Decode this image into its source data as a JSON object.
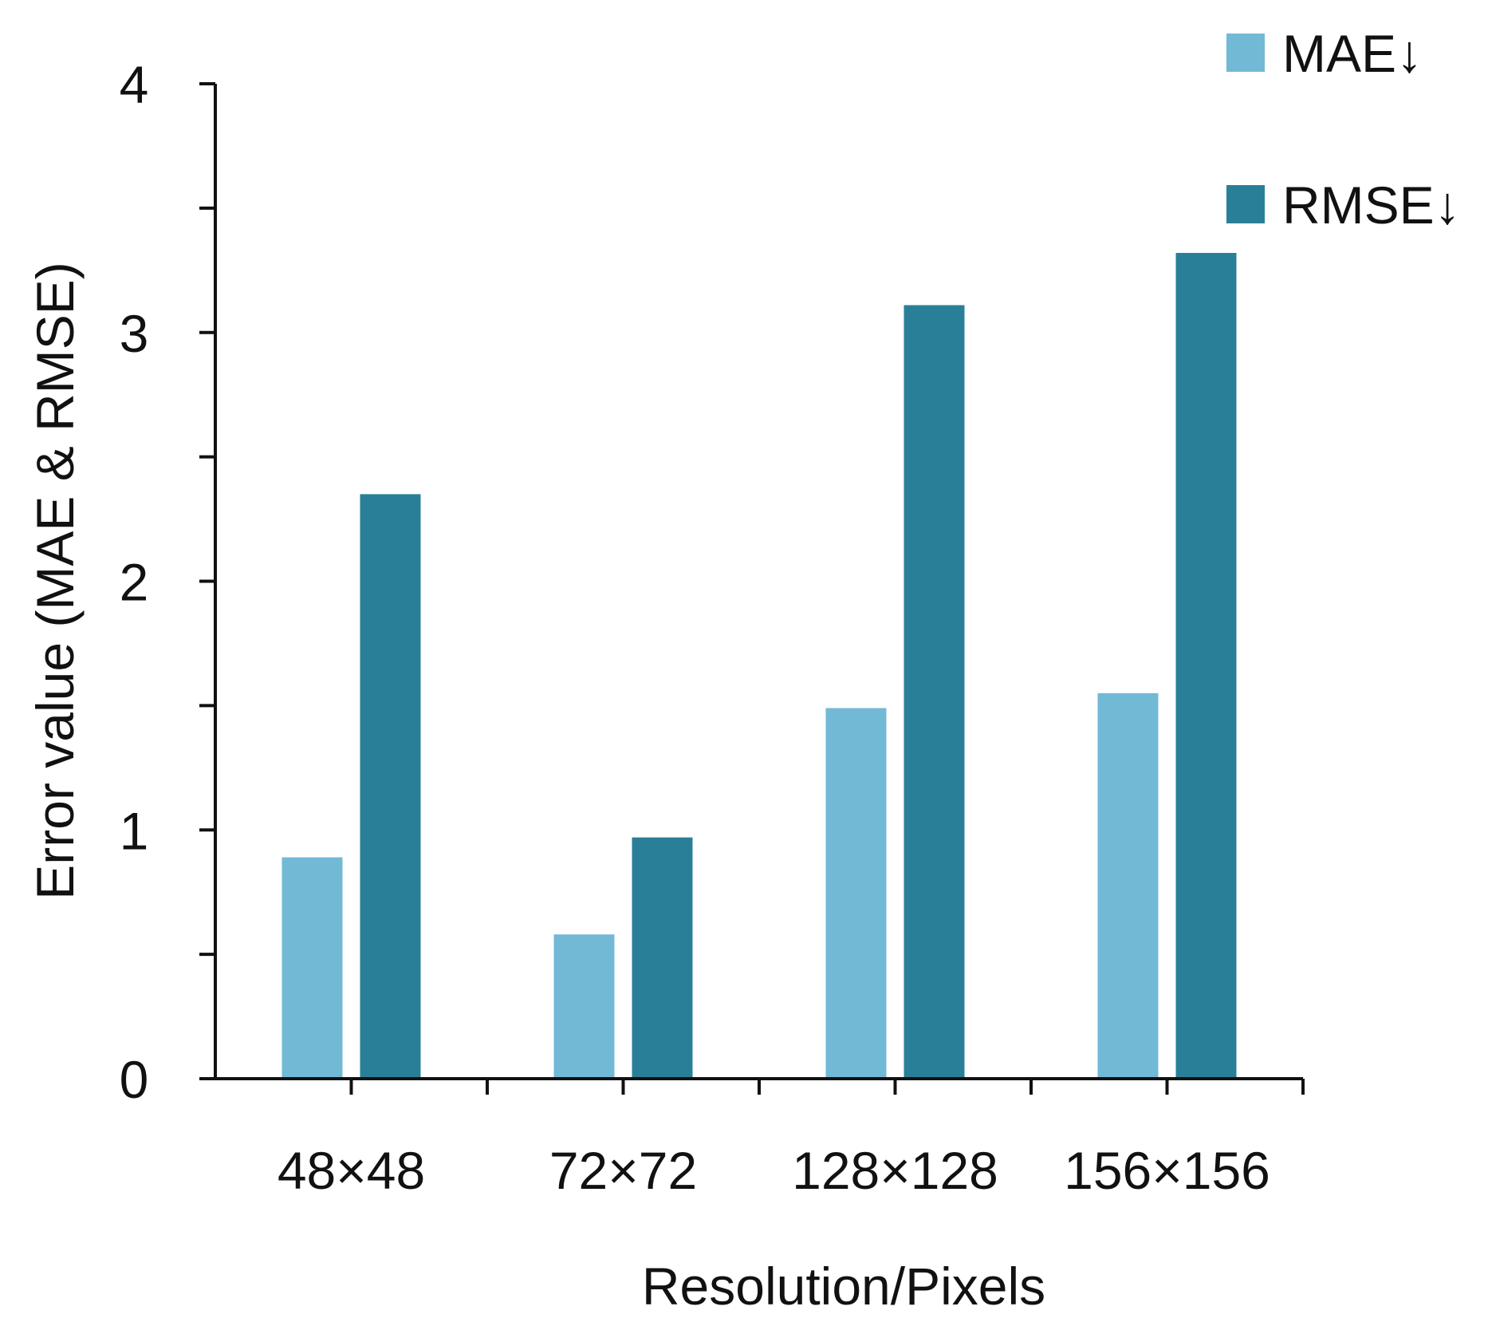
{
  "chart_data": {
    "type": "bar",
    "title": "",
    "xlabel": "Resolution/Pixels",
    "ylabel": "Error value (MAE & RMSE)",
    "categories": [
      "48×48",
      "72×72",
      "128×128",
      "156×156"
    ],
    "series": [
      {
        "name": "MAE↓",
        "color": "#72b9d6",
        "values": [
          0.89,
          0.58,
          1.49,
          1.55
        ]
      },
      {
        "name": "RMSE↓",
        "color": "#2a7f98",
        "values": [
          2.35,
          0.97,
          3.11,
          3.32
        ]
      }
    ],
    "ylim": [
      0,
      4
    ],
    "yticks": [
      0,
      1,
      2,
      3,
      4
    ],
    "y_minor_ticks": [
      0.5,
      1.5,
      2.5,
      3.5
    ],
    "grid": false,
    "legend_position": "top-right"
  }
}
